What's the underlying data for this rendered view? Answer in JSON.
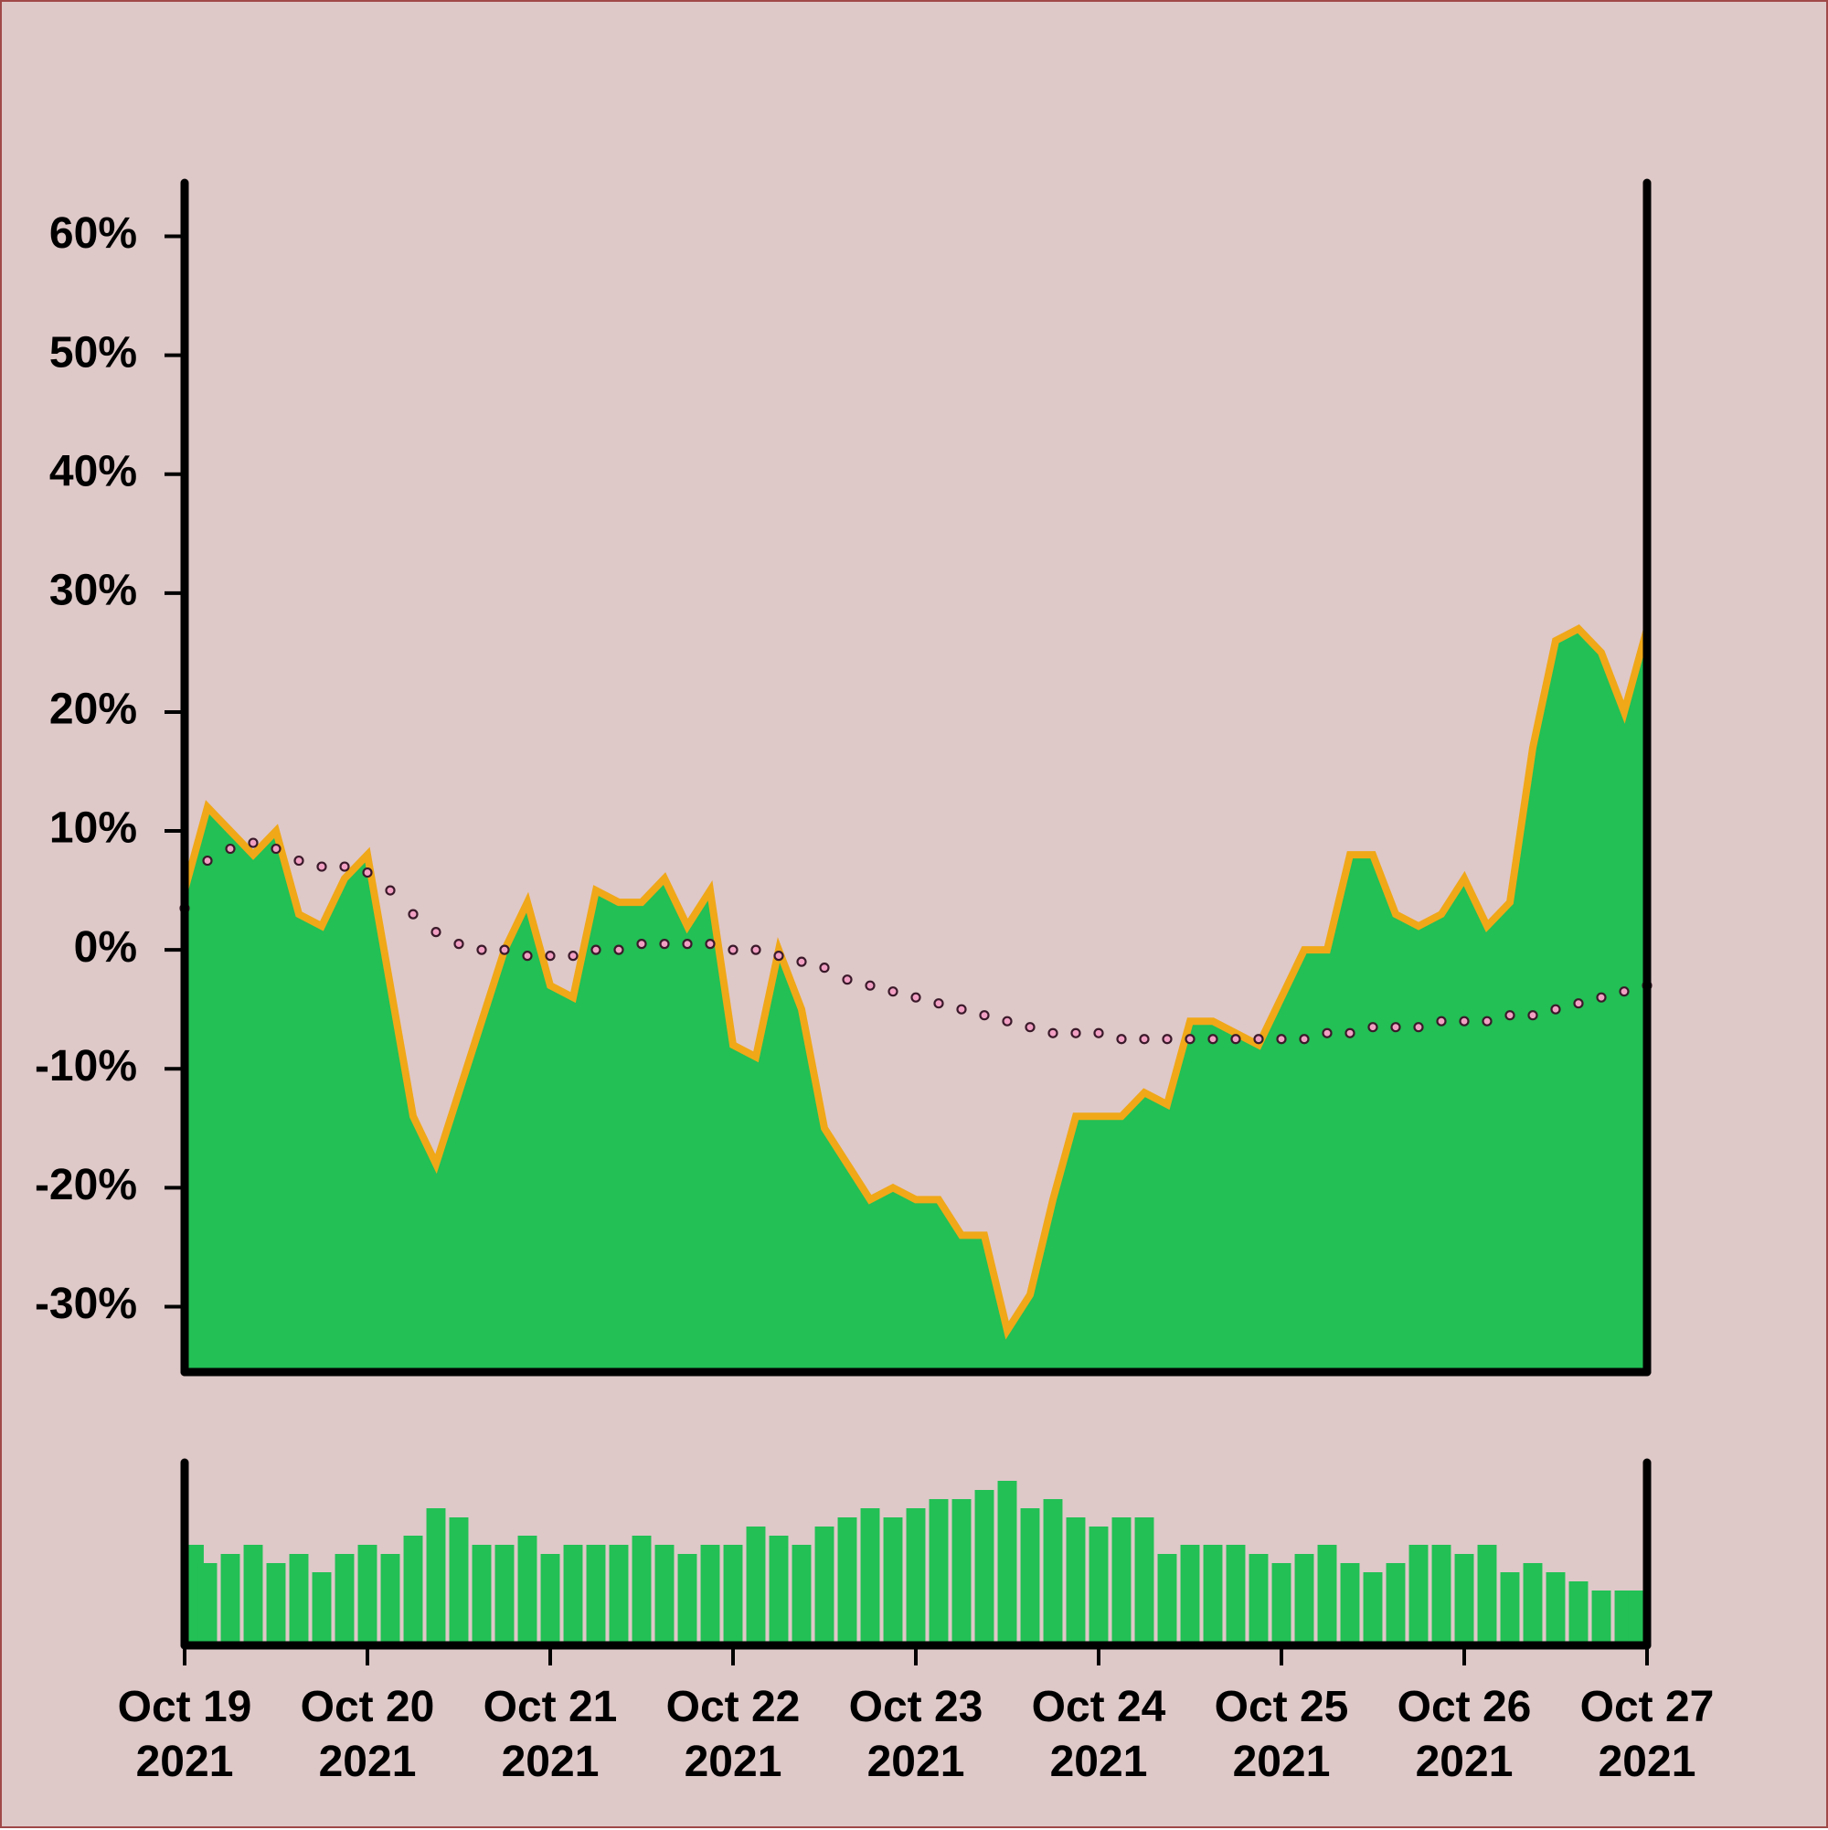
{
  "chart_data": [
    {
      "type": "area",
      "x": [
        0,
        3,
        6,
        9,
        12,
        15,
        18,
        21,
        24,
        27,
        30,
        33,
        36,
        39,
        42,
        45,
        48,
        51,
        54,
        57,
        60,
        63,
        66,
        69,
        72,
        75,
        78,
        81,
        84,
        87,
        90,
        93,
        96,
        99,
        102,
        105,
        108,
        111,
        114,
        117,
        120,
        123,
        126,
        129,
        132,
        135,
        138,
        141,
        144,
        147,
        150,
        153,
        156,
        159,
        162,
        165,
        168,
        171,
        174,
        177,
        180,
        183,
        186,
        189,
        192
      ],
      "xlim": [
        0,
        192
      ],
      "ylim": [
        -35.5,
        64.5
      ],
      "yticks": [
        {
          "value": -30,
          "label": "-30%"
        },
        {
          "value": -20,
          "label": "-20%"
        },
        {
          "value": -10,
          "label": "-10%"
        },
        {
          "value": 0,
          "label": "0%"
        },
        {
          "value": 10,
          "label": "10%"
        },
        {
          "value": 20,
          "label": "20%"
        },
        {
          "value": 30,
          "label": "30%"
        },
        {
          "value": 40,
          "label": "40%"
        },
        {
          "value": 50,
          "label": "50%"
        },
        {
          "value": 60,
          "label": "60%"
        }
      ],
      "series": [
        {
          "type": "area",
          "color": "#22c055",
          "edge_color": "#f0a818",
          "values": [
            5,
            12,
            10,
            8,
            10,
            3,
            2,
            6,
            8,
            -3,
            -14,
            -18,
            -12,
            -6,
            0,
            4,
            -3,
            -4,
            5,
            4,
            4,
            6,
            2,
            5,
            -8,
            -9,
            0,
            -5,
            -15,
            -18,
            -21,
            -20,
            -21,
            -21,
            -24,
            -24,
            -32,
            -29,
            -21,
            -14,
            -14,
            -14,
            -12,
            -13,
            -6,
            -6,
            -7,
            -8,
            -4,
            0,
            0,
            8,
            8,
            3,
            2,
            3,
            6,
            2,
            4,
            17,
            26,
            27,
            25,
            20,
            27
          ]
        },
        {
          "type": "line",
          "color": "#f2a0c4",
          "edge_color": "#3a1a2a",
          "values": [
            3.5,
            7.5,
            8.5,
            9,
            8.5,
            7.5,
            7,
            7,
            6.5,
            5,
            3,
            1.5,
            0.5,
            0,
            0,
            -0.5,
            -0.5,
            -0.5,
            0,
            0,
            0.5,
            0.5,
            0.5,
            0.5,
            0,
            0,
            -0.5,
            -1,
            -1.5,
            -2.5,
            -3,
            -3.5,
            -4,
            -4.5,
            -5,
            -5.5,
            -6,
            -6.5,
            -7,
            -7,
            -7,
            -7.5,
            -7.5,
            -7.5,
            -7.5,
            -7.5,
            -7.5,
            -7.5,
            -7.5,
            -7.5,
            -7,
            -7,
            -6.5,
            -6.5,
            -6.5,
            -6,
            -6,
            -6,
            -5.5,
            -5.5,
            -5,
            -4.5,
            -4,
            -3.5,
            -3
          ]
        }
      ]
    },
    {
      "type": "bar",
      "x": [
        0,
        3,
        6,
        9,
        12,
        15,
        18,
        21,
        24,
        27,
        30,
        33,
        36,
        39,
        42,
        45,
        48,
        51,
        54,
        57,
        60,
        63,
        66,
        69,
        72,
        75,
        78,
        81,
        84,
        87,
        90,
        93,
        96,
        99,
        102,
        105,
        108,
        111,
        114,
        117,
        120,
        123,
        126,
        129,
        132,
        135,
        138,
        141,
        144,
        147,
        150,
        153,
        156,
        159,
        162,
        165,
        168,
        171,
        174,
        177,
        180,
        183,
        186,
        189,
        192
      ],
      "xlim": [
        0,
        192
      ],
      "ylim": [
        0,
        100
      ],
      "color": "#22c055",
      "xticks": [
        {
          "value": 0,
          "label": "Oct 19 2021"
        },
        {
          "value": 24,
          "label": "Oct 20 2021"
        },
        {
          "value": 48,
          "label": "Oct 21 2021"
        },
        {
          "value": 72,
          "label": "Oct 22 2021"
        },
        {
          "value": 96,
          "label": "Oct 23 2021"
        },
        {
          "value": 120,
          "label": "Oct 24 2021"
        },
        {
          "value": 144,
          "label": "Oct 25 2021"
        },
        {
          "value": 168,
          "label": "Oct 26 2021"
        },
        {
          "value": 192,
          "label": "Oct 27 2021"
        }
      ],
      "values": [
        55,
        45,
        50,
        55,
        45,
        50,
        40,
        50,
        55,
        50,
        60,
        75,
        70,
        55,
        55,
        60,
        50,
        55,
        55,
        55,
        60,
        55,
        50,
        55,
        55,
        65,
        60,
        55,
        65,
        70,
        75,
        70,
        75,
        80,
        80,
        85,
        90,
        75,
        80,
        70,
        65,
        70,
        70,
        50,
        55,
        55,
        55,
        50,
        45,
        50,
        55,
        45,
        40,
        45,
        55,
        55,
        50,
        55,
        40,
        45,
        40,
        35,
        30,
        30,
        30
      ]
    }
  ]
}
